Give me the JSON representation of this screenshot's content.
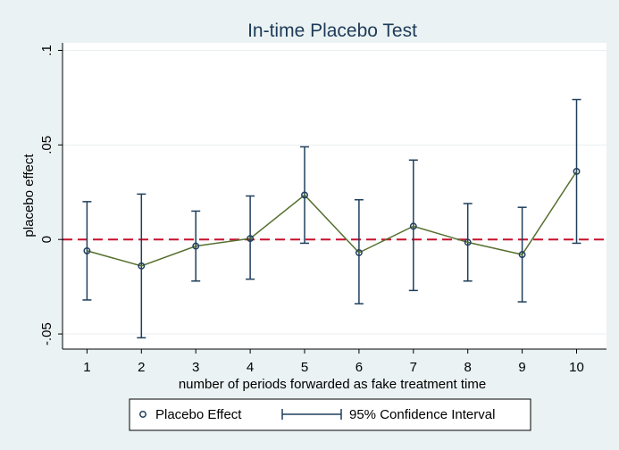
{
  "chart_data": {
    "type": "line",
    "title": "In-time Placebo Test",
    "xlabel": "number of periods forwarded as fake treatment time",
    "ylabel": "placebo effect",
    "x": [
      1,
      2,
      3,
      4,
      5,
      6,
      7,
      8,
      9,
      10
    ],
    "xticks": [
      "1",
      "2",
      "3",
      "4",
      "5",
      "6",
      "7",
      "8",
      "9",
      "10"
    ],
    "yticks": [
      {
        "value": -0.05,
        "label": "-.05"
      },
      {
        "value": 0,
        "label": "0"
      },
      {
        "value": 0.05,
        "label": ".05"
      },
      {
        "value": 0.1,
        "label": ".1"
      }
    ],
    "ylim": [
      -0.058,
      0.104
    ],
    "xlim": [
      0.55,
      10.55
    ],
    "grid": true,
    "reference_line": {
      "y": 0,
      "color": "#c8102e",
      "style": "dashed"
    },
    "series": [
      {
        "name": "Placebo Effect",
        "values": [
          -0.006,
          -0.014,
          -0.0035,
          0.0005,
          0.0235,
          -0.007,
          0.007,
          -0.0015,
          -0.008,
          0.036
        ]
      },
      {
        "name": "95% Confidence Interval",
        "lower": [
          -0.032,
          -0.052,
          -0.022,
          -0.021,
          -0.002,
          -0.034,
          -0.027,
          -0.022,
          -0.033,
          -0.002
        ],
        "upper": [
          0.02,
          0.024,
          0.015,
          0.023,
          0.049,
          0.021,
          0.042,
          0.019,
          0.017,
          0.074
        ]
      }
    ],
    "legend": {
      "position": "bottom"
    },
    "colors": {
      "line": "#56702f",
      "ci": "#1f3f5c",
      "marker": "#1f3f5c",
      "reference": "#c8102e",
      "grid": "#e9eef1",
      "background": "#eaf2f3",
      "plot_background": "#ffffff"
    }
  }
}
